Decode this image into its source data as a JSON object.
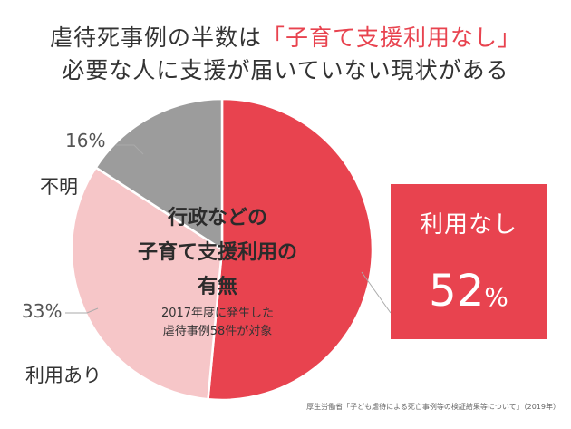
{
  "headline": {
    "line1_prefix": "虐待死事例の半数は",
    "line1_accent": "「子育て支援利用なし」",
    "line2": "必要な人に支援が届いていない現状がある"
  },
  "chart_data": {
    "type": "pie",
    "categories": [
      "利用なし",
      "利用あり",
      "不明"
    ],
    "values": [
      52,
      33,
      16
    ],
    "unit": "%",
    "colors": [
      "#e8434f",
      "#f6c6c8",
      "#9c9c9c"
    ],
    "center_title": [
      "行政などの",
      "子育て支援利用の",
      "有無"
    ],
    "center_subtitle": [
      "2017年度に発生した",
      "虐待事例58件が対象"
    ],
    "labels": {
      "unknown": "不明",
      "unknown_pct": "16%",
      "used": "利用あり",
      "used_pct": "33%"
    },
    "callout": {
      "title": "利用なし",
      "value": "52",
      "unit": "%"
    }
  },
  "source": "厚生労働省「子ども虐待による死亡事例等の検証結果等について」（2019年）"
}
